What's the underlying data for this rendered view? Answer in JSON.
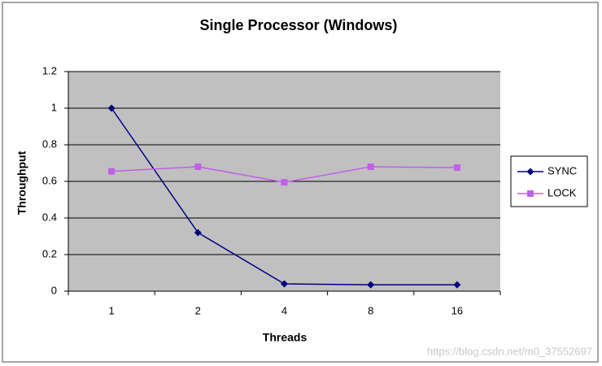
{
  "chart_data": {
    "type": "line",
    "title": "Single Processor (Windows)",
    "x_label": "Threads",
    "y_label": "Throughput",
    "categories": [
      "1",
      "2",
      "4",
      "8",
      "16"
    ],
    "series": [
      {
        "name": "SYNC",
        "color": "#000080",
        "marker": "diamond",
        "values": [
          1.0,
          0.32,
          0.04,
          0.035,
          0.035
        ]
      },
      {
        "name": "LOCK",
        "color": "#c060e8",
        "marker": "square",
        "values": [
          0.655,
          0.68,
          0.595,
          0.68,
          0.675
        ]
      }
    ],
    "ylim": [
      0,
      1.2
    ],
    "yticks": [
      0,
      0.2,
      0.4,
      0.6,
      0.8,
      1,
      1.2
    ],
    "grid": true,
    "legend": "right",
    "watermark": "https://blog.csdn.net/m0_37552697"
  }
}
